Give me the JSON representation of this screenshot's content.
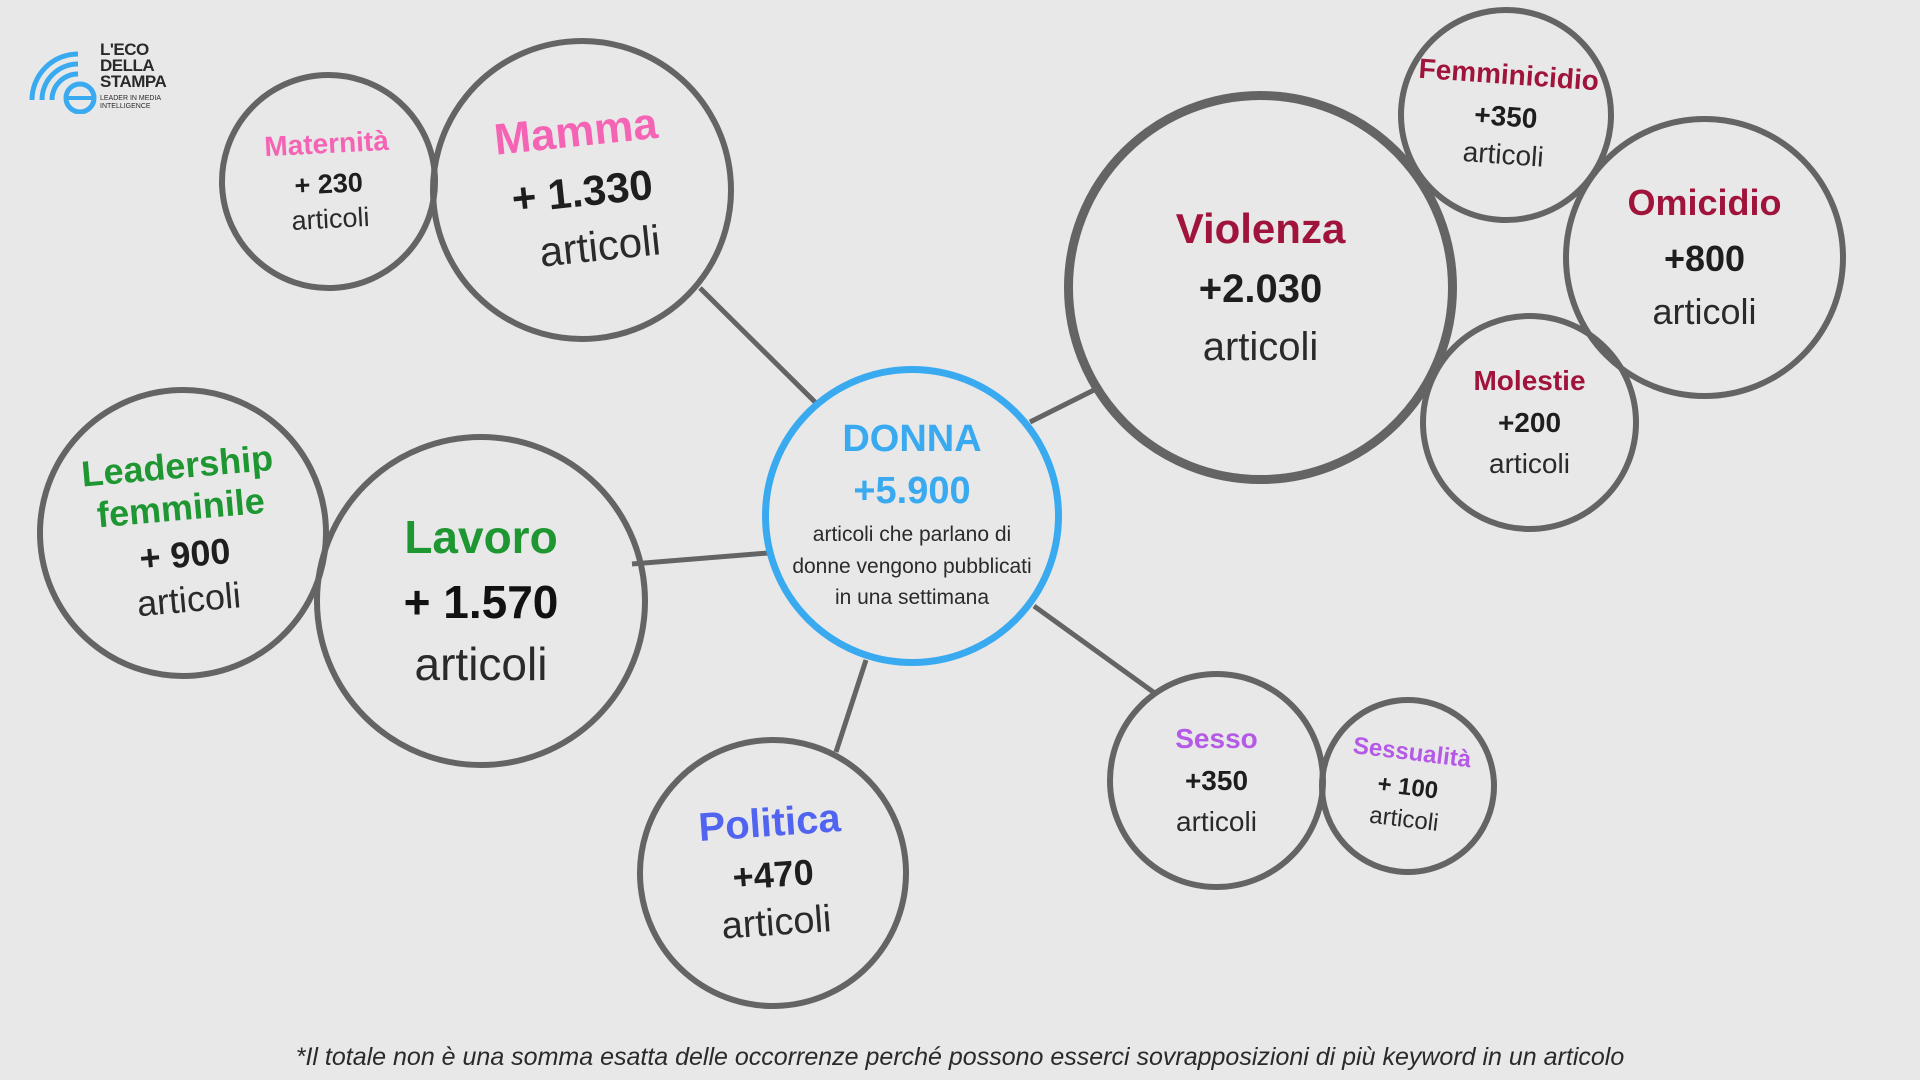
{
  "logo": {
    "line1": "L'ECO",
    "line2": "DELLA",
    "line3": "STAMPA",
    "tagline1": "LEADER IN MEDIA",
    "tagline2": "INTELLIGENCE",
    "accent_color": "#3aaaf0"
  },
  "center": {
    "title": "DONNA",
    "count": "+5.900",
    "desc_line1": "articoli che parlano di",
    "desc_line2": "donne vengono pubblicati",
    "desc_line3": "in una settimana"
  },
  "bubbles": [
    {
      "id": "maternita",
      "title": "Maternità",
      "count": "+ 230",
      "unit": "articoli",
      "color": "#f564b4"
    },
    {
      "id": "mamma",
      "title": "Mamma",
      "count": "+ 1.330",
      "unit": "articoli",
      "color": "#f564b4"
    },
    {
      "id": "leadership",
      "title": "Leadership femminile",
      "title_line1": "Leadership",
      "title_line2": "femminile",
      "count": "+ 900",
      "unit": "articoli",
      "color": "#1e9632"
    },
    {
      "id": "lavoro",
      "title": "Lavoro",
      "count": "+ 1.570",
      "unit": "articoli",
      "color": "#1e9632"
    },
    {
      "id": "politica",
      "title": "Politica",
      "count": "+470",
      "unit": "articoli",
      "color": "#5064f0"
    },
    {
      "id": "violenza",
      "title": "Violenza",
      "count": "+2.030",
      "unit": "articoli",
      "color": "#a0143c"
    },
    {
      "id": "femminicidio",
      "title": "Femminicidio",
      "count": "+350",
      "unit": "articoli",
      "color": "#a0143c"
    },
    {
      "id": "omicidio",
      "title": "Omicidio",
      "count": "+800",
      "unit": "articoli",
      "color": "#a0143c"
    },
    {
      "id": "molestie",
      "title": "Molestie",
      "count": "+200",
      "unit": "articoli",
      "color": "#a0143c"
    },
    {
      "id": "sesso",
      "title": "Sesso",
      "count": "+350",
      "unit": "articoli",
      "color": "#b45ae6"
    },
    {
      "id": "sessualita",
      "title": "Sessualità",
      "count": "+ 100",
      "unit": "articoli",
      "color": "#b45ae6"
    }
  ],
  "connector_color": "#646464",
  "footnote": "*Il totale non è una somma esatta delle occorrenze perché possono esserci sovrapposizioni di più keyword in un articolo"
}
